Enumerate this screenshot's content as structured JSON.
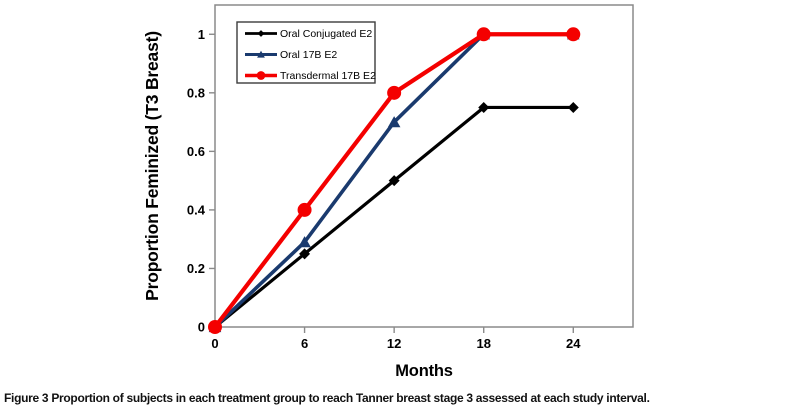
{
  "figure": {
    "caption_label": "Figure 3",
    "caption_text": "Proportion of subjects in each treatment group to reach Tanner breast stage 3 assessed at each study interval."
  },
  "chart_data": {
    "type": "line",
    "title": "",
    "xlabel": "Months",
    "ylabel": "Proportion Feminized (T3 Breast)",
    "x": [
      0,
      6,
      12,
      18,
      24
    ],
    "xticks": [
      0,
      6,
      12,
      18,
      24
    ],
    "yticks": [
      0,
      0.2,
      0.4,
      0.6,
      0.8,
      1
    ],
    "xlim": [
      0,
      28
    ],
    "ylim": [
      0,
      1.1
    ],
    "grid": false,
    "legend_position": "top-left-inside",
    "series": [
      {
        "name": "Oral Conjugated E2",
        "marker": "diamond",
        "color": "#000000",
        "values": [
          0,
          0.25,
          0.5,
          0.75,
          0.75
        ]
      },
      {
        "name": "Oral 17B E2",
        "marker": "triangle",
        "color": "#1A3A6E",
        "values": [
          0,
          0.29,
          0.7,
          1.0,
          1.0
        ]
      },
      {
        "name": "Transdermal 17B E2",
        "marker": "circle",
        "color": "#F40000",
        "values": [
          0,
          0.4,
          0.8,
          1.0,
          1.0
        ]
      }
    ]
  },
  "colors": {
    "background": "#ffffff",
    "axis_line": "#8a8a8a",
    "tick_label": "#000000",
    "legend_border": "#3c3c3c"
  }
}
